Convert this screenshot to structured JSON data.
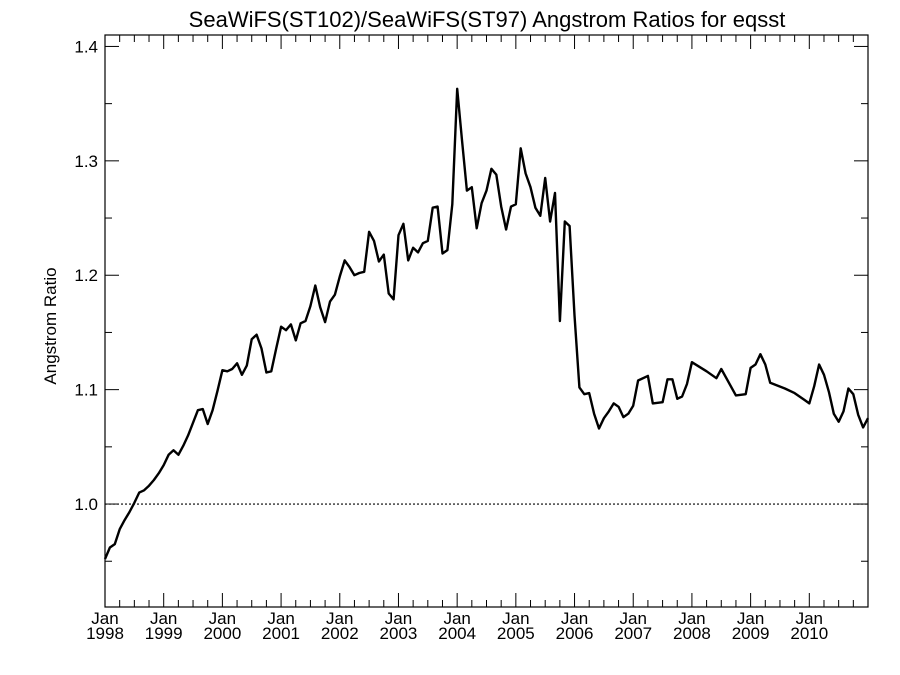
{
  "chart_data": {
    "type": "line",
    "title": "SeaWiFS(ST102)/SeaWiFS(ST97)  Angstrom Ratios for eqsst",
    "xlabel": "",
    "ylabel": "Angstrom Ratio",
    "ylim": [
      0.91,
      1.41
    ],
    "xlim": [
      "1998-01",
      "2010-12"
    ],
    "yticks": [
      {
        "value": 1.0,
        "label": "1.0"
      },
      {
        "value": 1.1,
        "label": "1.1"
      },
      {
        "value": 1.2,
        "label": "1.2"
      },
      {
        "value": 1.3,
        "label": "1.3"
      },
      {
        "value": 1.4,
        "label": "1.4"
      }
    ],
    "xticks": [
      {
        "date": "1998-01",
        "month": "Jan",
        "year": "1998"
      },
      {
        "date": "1999-01",
        "month": "Jan",
        "year": "1999"
      },
      {
        "date": "2000-01",
        "month": "Jan",
        "year": "2000"
      },
      {
        "date": "2001-01",
        "month": "Jan",
        "year": "2001"
      },
      {
        "date": "2002-01",
        "month": "Jan",
        "year": "2002"
      },
      {
        "date": "2003-01",
        "month": "Jan",
        "year": "2003"
      },
      {
        "date": "2004-01",
        "month": "Jan",
        "year": "2004"
      },
      {
        "date": "2005-01",
        "month": "Jan",
        "year": "2005"
      },
      {
        "date": "2006-01",
        "month": "Jan",
        "year": "2006"
      },
      {
        "date": "2007-01",
        "month": "Jan",
        "year": "2007"
      },
      {
        "date": "2008-01",
        "month": "Jan",
        "year": "2008"
      },
      {
        "date": "2009-01",
        "month": "Jan",
        "year": "2009"
      },
      {
        "date": "2010-01",
        "month": "Jan",
        "year": "2010"
      }
    ],
    "reference_line": {
      "y": 1.0,
      "style": "dotted"
    },
    "grid": false,
    "line_color": "#000000",
    "series": [
      {
        "points": [
          [
            "1998-01",
            0.952
          ],
          [
            "1998-02",
            0.962
          ],
          [
            "1998-03",
            0.965
          ],
          [
            "1998-04",
            0.978
          ],
          [
            "1998-05",
            0.986
          ],
          [
            "1998-06",
            0.993
          ],
          [
            "1998-07",
            1.001
          ],
          [
            "1998-08",
            1.01
          ],
          [
            "1998-09",
            1.012
          ],
          [
            "1998-10",
            1.016
          ],
          [
            "1998-11",
            1.021
          ],
          [
            "1998-12",
            1.027
          ],
          [
            "1999-01",
            1.034
          ],
          [
            "1999-02",
            1.043
          ],
          [
            "1999-03",
            1.047
          ],
          [
            "1999-04",
            1.043
          ],
          [
            "1999-05",
            1.051
          ],
          [
            "1999-06",
            1.06
          ],
          [
            "1999-07",
            1.071
          ],
          [
            "1999-08",
            1.082
          ],
          [
            "1999-09",
            1.083
          ],
          [
            "1999-10",
            1.07
          ],
          [
            "1999-11",
            1.082
          ],
          [
            "1999-12",
            1.099
          ],
          [
            "2000-01",
            1.117
          ],
          [
            "2000-02",
            1.116
          ],
          [
            "2000-03",
            1.118
          ],
          [
            "2000-04",
            1.123
          ],
          [
            "2000-05",
            1.113
          ],
          [
            "2000-06",
            1.121
          ],
          [
            "2000-07",
            1.144
          ],
          [
            "2000-08",
            1.148
          ],
          [
            "2000-09",
            1.136
          ],
          [
            "2000-10",
            1.115
          ],
          [
            "2000-11",
            1.116
          ],
          [
            "2000-12",
            1.136
          ],
          [
            "2001-01",
            1.155
          ],
          [
            "2001-02",
            1.152
          ],
          [
            "2001-03",
            1.157
          ],
          [
            "2001-04",
            1.143
          ],
          [
            "2001-05",
            1.158
          ],
          [
            "2001-06",
            1.16
          ],
          [
            "2001-07",
            1.173
          ],
          [
            "2001-08",
            1.191
          ],
          [
            "2001-09",
            1.172
          ],
          [
            "2001-10",
            1.159
          ],
          [
            "2001-11",
            1.177
          ],
          [
            "2001-12",
            1.183
          ],
          [
            "2002-01",
            1.199
          ],
          [
            "2002-02",
            1.213
          ],
          [
            "2002-03",
            1.207
          ],
          [
            "2002-04",
            1.2
          ],
          [
            "2002-05",
            1.202
          ],
          [
            "2002-06",
            1.203
          ],
          [
            "2002-07",
            1.238
          ],
          [
            "2002-08",
            1.23
          ],
          [
            "2002-09",
            1.212
          ],
          [
            "2002-10",
            1.218
          ],
          [
            "2002-11",
            1.184
          ],
          [
            "2002-12",
            1.179
          ],
          [
            "2003-01",
            1.235
          ],
          [
            "2003-02",
            1.245
          ],
          [
            "2003-03",
            1.213
          ],
          [
            "2003-04",
            1.224
          ],
          [
            "2003-05",
            1.22
          ],
          [
            "2003-06",
            1.228
          ],
          [
            "2003-07",
            1.23
          ],
          [
            "2003-08",
            1.259
          ],
          [
            "2003-09",
            1.26
          ],
          [
            "2003-10",
            1.219
          ],
          [
            "2003-11",
            1.222
          ],
          [
            "2003-12",
            1.262
          ],
          [
            "2004-01",
            1.363
          ],
          [
            "2004-02",
            1.318
          ],
          [
            "2004-03",
            1.274
          ],
          [
            "2004-04",
            1.277
          ],
          [
            "2004-05",
            1.241
          ],
          [
            "2004-06",
            1.263
          ],
          [
            "2004-07",
            1.274
          ],
          [
            "2004-08",
            1.293
          ],
          [
            "2004-09",
            1.288
          ],
          [
            "2004-10",
            1.26
          ],
          [
            "2004-11",
            1.24
          ],
          [
            "2004-12",
            1.26
          ],
          [
            "2005-01",
            1.262
          ],
          [
            "2005-02",
            1.311
          ],
          [
            "2005-03",
            1.289
          ],
          [
            "2005-04",
            1.277
          ],
          [
            "2005-05",
            1.259
          ],
          [
            "2005-06",
            1.252
          ],
          [
            "2005-07",
            1.285
          ],
          [
            "2005-08",
            1.247
          ],
          [
            "2005-09",
            1.272
          ],
          [
            "2005-10",
            1.16
          ],
          [
            "2005-11",
            1.247
          ],
          [
            "2005-12",
            1.243
          ],
          [
            "2006-01",
            1.165
          ],
          [
            "2006-02",
            1.102
          ],
          [
            "2006-03",
            1.096
          ],
          [
            "2006-04",
            1.097
          ],
          [
            "2006-05",
            1.079
          ],
          [
            "2006-06",
            1.066
          ],
          [
            "2006-07",
            1.075
          ],
          [
            "2006-08",
            1.081
          ],
          [
            "2006-09",
            1.088
          ],
          [
            "2006-10",
            1.085
          ],
          [
            "2006-11",
            1.076
          ],
          [
            "2006-12",
            1.079
          ],
          [
            "2007-01",
            1.086
          ],
          [
            "2007-02",
            1.108
          ],
          [
            "2007-04",
            1.112
          ],
          [
            "2007-05",
            1.088
          ],
          [
            "2007-07",
            1.089
          ],
          [
            "2007-08",
            1.109
          ],
          [
            "2007-09",
            1.109
          ],
          [
            "2007-10",
            1.092
          ],
          [
            "2007-11",
            1.094
          ],
          [
            "2007-12",
            1.105
          ],
          [
            "2008-01",
            1.124
          ],
          [
            "2008-04",
            1.116
          ],
          [
            "2008-06",
            1.11
          ],
          [
            "2008-07",
            1.118
          ],
          [
            "2008-10",
            1.095
          ],
          [
            "2008-12",
            1.096
          ],
          [
            "2009-01",
            1.119
          ],
          [
            "2009-02",
            1.122
          ],
          [
            "2009-03",
            1.131
          ],
          [
            "2009-04",
            1.122
          ],
          [
            "2009-05",
            1.106
          ],
          [
            "2009-08",
            1.101
          ],
          [
            "2009-10",
            1.097
          ],
          [
            "2009-12",
            1.091
          ],
          [
            "2010-01",
            1.088
          ],
          [
            "2010-02",
            1.103
          ],
          [
            "2010-03",
            1.122
          ],
          [
            "2010-04",
            1.113
          ],
          [
            "2010-05",
            1.098
          ],
          [
            "2010-06",
            1.079
          ],
          [
            "2010-07",
            1.072
          ],
          [
            "2010-08",
            1.081
          ],
          [
            "2010-09",
            1.101
          ],
          [
            "2010-10",
            1.096
          ],
          [
            "2010-11",
            1.078
          ],
          [
            "2010-12",
            1.067
          ],
          [
            "2011-01",
            1.075
          ]
        ]
      }
    ]
  }
}
